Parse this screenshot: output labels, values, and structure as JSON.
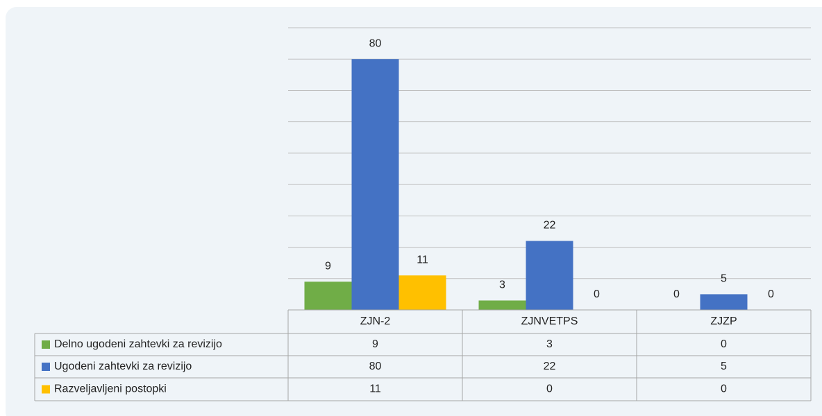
{
  "chart_data": {
    "type": "bar",
    "categories": [
      "ZJN-2",
      "ZJNVETPS",
      "ZJZP"
    ],
    "series": [
      {
        "name": "Delno ugodeni zahtevki za revizijo",
        "color": "#70ad47",
        "values": [
          9,
          3,
          0
        ]
      },
      {
        "name": "Ugodeni zahtevki za revizijo",
        "color": "#4472c4",
        "values": [
          80,
          22,
          5
        ]
      },
      {
        "name": "Razveljavljeni postopki",
        "color": "#ffc000",
        "values": [
          11,
          0,
          0
        ]
      }
    ],
    "ylim": [
      0,
      90
    ],
    "yticks": [
      0,
      10,
      20,
      30,
      40,
      50,
      60,
      70,
      80,
      90
    ],
    "grid": true,
    "data_table": true
  }
}
